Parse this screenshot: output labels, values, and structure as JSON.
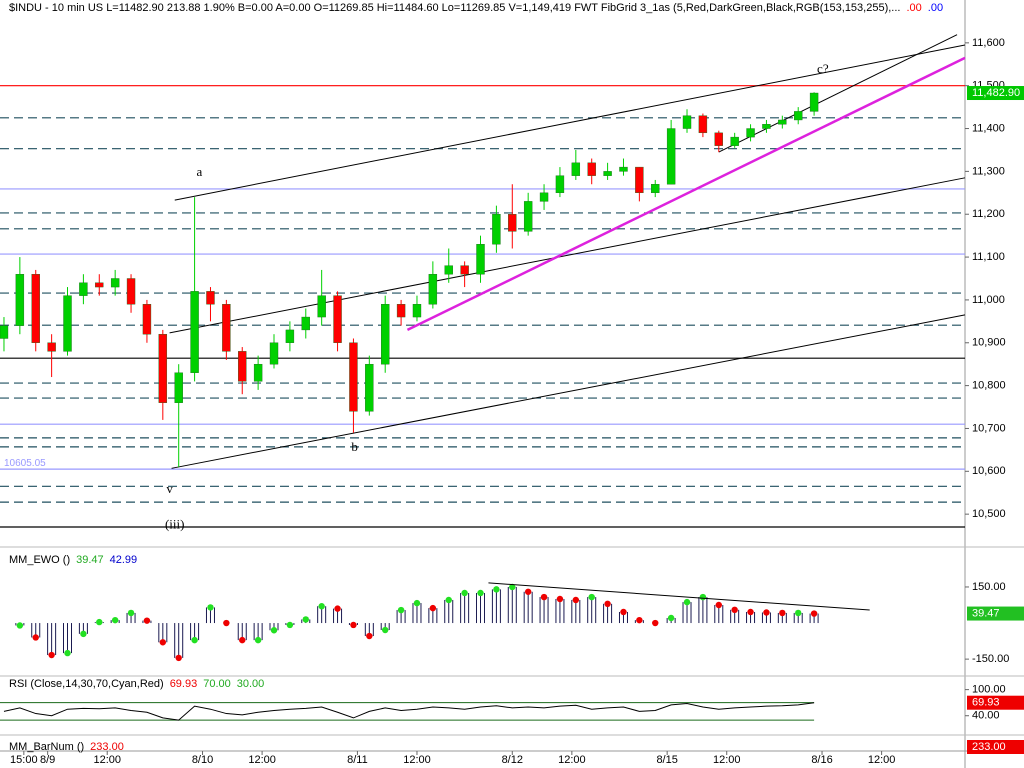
{
  "chart_data": [
    {
      "type": "candlestick",
      "header": [
        {
          "text": "$INDU - 10 min US   L=11482.90   213.88   1.90%   B=0.00   A=0.00   O=11269.85   Hi=11484.60   Lo=11269.85   V=1,149,419   FWT FibGrid 3_1as (5,Red,DarkGreen,Black,RGB(153,153,255),...",
          "color": "#000000"
        },
        {
          "text": ".00",
          "color": "#ff0000"
        },
        {
          "text": ".00",
          "color": "#0000ff"
        }
      ],
      "x": [
        -50,
        -46,
        -42,
        -38,
        -34,
        -30,
        -26,
        -22,
        -18,
        -14,
        -10,
        -6,
        -2,
        2,
        6,
        10,
        14,
        18,
        22,
        26,
        30,
        34,
        38,
        42,
        46,
        50,
        54,
        58,
        62,
        66,
        70,
        74,
        78,
        82,
        86,
        90,
        94,
        98,
        102,
        106,
        110,
        114,
        118,
        122,
        126,
        130,
        134,
        138,
        142,
        146,
        150,
        154
      ],
      "open": [
        10910,
        10940,
        11060,
        10900,
        10880,
        11010,
        11040,
        11030,
        11050,
        10990,
        10920,
        10760,
        10830,
        11020,
        10990,
        10880,
        10810,
        10850,
        10900,
        10930,
        10960,
        11010,
        10900,
        10740,
        10850,
        10990,
        10960,
        10990,
        11060,
        11080,
        11060,
        11130,
        11200,
        11160,
        11230,
        11250,
        11290,
        11320,
        11290,
        11300,
        11310,
        11250,
        11270,
        11400,
        11430,
        11390,
        11360,
        11380,
        11400,
        11410,
        11420,
        11440
      ],
      "high": [
        10960,
        11100,
        11070,
        10920,
        11030,
        11060,
        11060,
        11070,
        11060,
        11000,
        10930,
        10850,
        11240,
        11030,
        11000,
        10890,
        10870,
        10920,
        10950,
        10980,
        11070,
        11020,
        10910,
        10870,
        11010,
        11000,
        11010,
        11090,
        11120,
        11090,
        11150,
        11220,
        11270,
        11250,
        11270,
        11310,
        11350,
        11330,
        11320,
        11330,
        11310,
        11280,
        11420,
        11445,
        11435,
        11395,
        11390,
        11410,
        11420,
        11430,
        11450,
        11484.6
      ],
      "low": [
        10880,
        10920,
        10880,
        10820,
        10870,
        10990,
        11010,
        11010,
        10970,
        10900,
        10720,
        10610,
        10810,
        10950,
        10860,
        10780,
        10790,
        10840,
        10880,
        10910,
        10940,
        10880,
        10690,
        10730,
        10830,
        10940,
        10950,
        10980,
        11040,
        11030,
        11040,
        11110,
        11120,
        11150,
        11210,
        11240,
        11280,
        11270,
        11280,
        11290,
        11230,
        11240,
        11270,
        11390,
        11380,
        11345,
        11355,
        11370,
        11390,
        11400,
        11410,
        11430
      ],
      "close": [
        10940,
        11060,
        10900,
        10880,
        11010,
        11040,
        11030,
        11050,
        10990,
        10920,
        10760,
        10830,
        11020,
        10990,
        10880,
        10810,
        10850,
        10900,
        10930,
        10960,
        11010,
        10900,
        10740,
        10850,
        10990,
        10960,
        10990,
        11060,
        11080,
        11060,
        11130,
        11200,
        11160,
        11230,
        11250,
        11290,
        11320,
        11290,
        11300,
        11310,
        11250,
        11270,
        11400,
        11430,
        11390,
        11360,
        11380,
        11400,
        11410,
        11420,
        11440,
        11482.9
      ],
      "colors": {
        "up": "#00d000",
        "down": "#ff0000",
        "wick": "#1a6a1a"
      },
      "xlim": [
        -51,
        192
      ],
      "xticks": [
        {
          "value": -45,
          "label": "15:00"
        },
        {
          "value": -39,
          "label": "8/9"
        },
        {
          "value": -24,
          "label": "12:00"
        },
        {
          "value": 0,
          "label": "8/10"
        },
        {
          "value": 15,
          "label": "12:00"
        },
        {
          "value": 39,
          "label": "8/11"
        },
        {
          "value": 54,
          "label": "12:00"
        },
        {
          "value": 78,
          "label": "8/12"
        },
        {
          "value": 93,
          "label": "12:00"
        },
        {
          "value": 117,
          "label": "8/15"
        },
        {
          "value": 132,
          "label": "12:00"
        },
        {
          "value": 156,
          "label": "8/16"
        },
        {
          "value": 171,
          "label": "12:00"
        }
      ],
      "ylim": [
        10428,
        11700
      ],
      "yticks": [
        {
          "value": 11600,
          "label": "11,600"
        },
        {
          "value": 11500,
          "label": "11,500"
        },
        {
          "value": 11400,
          "label": "11,400"
        },
        {
          "value": 11300,
          "label": "11,300"
        },
        {
          "value": 11200,
          "label": "11,200"
        },
        {
          "value": 11100,
          "label": "11,100"
        },
        {
          "value": 11000,
          "label": "11,000"
        },
        {
          "value": 10900,
          "label": "10,900"
        },
        {
          "value": 10800,
          "label": "10,800"
        },
        {
          "value": 10700,
          "label": "10,700"
        },
        {
          "value": 10600,
          "label": "10,600"
        },
        {
          "value": 10500,
          "label": "10,500"
        }
      ],
      "last": {
        "value": 11482.9,
        "label": "11,482.90"
      },
      "last_color": "#00c800",
      "levels": [
        {
          "value": 11500,
          "color": "#ff0000",
          "dashed": false
        },
        {
          "value": 11425,
          "color": "#1f4f5f",
          "dashed": true
        },
        {
          "value": 11353,
          "color": "#1f4f5f",
          "dashed": true
        },
        {
          "value": 11259,
          "color": "#9999ff",
          "dashed": false
        },
        {
          "value": 11203,
          "color": "#1f4f5f",
          "dashed": true
        },
        {
          "value": 11166,
          "color": "#1f4f5f",
          "dashed": true
        },
        {
          "value": 11107,
          "color": "#9999ff",
          "dashed": false
        },
        {
          "value": 11016,
          "color": "#1f4f5f",
          "dashed": true
        },
        {
          "value": 10941,
          "color": "#1f4f5f",
          "dashed": true
        },
        {
          "value": 10864,
          "color": "#000000",
          "dashed": false
        },
        {
          "value": 10806,
          "color": "#1f4f5f",
          "dashed": true
        },
        {
          "value": 10771,
          "color": "#1f4f5f",
          "dashed": true
        },
        {
          "value": 10710,
          "color": "#9999ff",
          "dashed": false
        },
        {
          "value": 10678,
          "color": "#1f4f5f",
          "dashed": true
        },
        {
          "value": 10657,
          "color": "#1f4f5f",
          "dashed": true
        },
        {
          "value": 10605.05,
          "color": "#9999ff",
          "dashed": false
        },
        {
          "value": 10565,
          "color": "#1f4f5f",
          "dashed": true
        },
        {
          "value": 10528,
          "color": "#1f4f5f",
          "dashed": true
        },
        {
          "value": 10470,
          "color": "#000000",
          "dashed": false
        }
      ],
      "trendlines": [
        {
          "from": [
            -7,
            11233
          ],
          "to": [
            192,
            11595
          ],
          "color": "#000000"
        },
        {
          "from": [
            -8.3,
            10923
          ],
          "to": [
            192,
            11285
          ],
          "color": "#000000"
        },
        {
          "from": [
            -7.8,
            10607
          ],
          "to": [
            192,
            10965
          ],
          "color": "#000000"
        },
        {
          "from": [
            130,
            11345
          ],
          "to": [
            190,
            11619
          ],
          "color": "#000000"
        },
        {
          "from": [
            51.6,
            10930
          ],
          "to": [
            192,
            11565
          ],
          "color": "#dd22dd"
        }
      ],
      "annotations": [
        {
          "text": "a",
          "x": -0.8,
          "y": 11296
        },
        {
          "text": "b",
          "x": 38.3,
          "y": 10654
        },
        {
          "text": "v",
          "x": -8.3,
          "y": 10556
        },
        {
          "text": "(iii)",
          "x": -7,
          "y": 10474
        },
        {
          "text": "c?",
          "x": 156.2,
          "y": 11537
        }
      ]
    },
    {
      "type": "ewo",
      "title": "MM_EWO ()",
      "values": [
        null,
        -10,
        -60,
        -133,
        -125,
        -45,
        4,
        12,
        42,
        10,
        -80,
        -145,
        -71,
        65,
        0,
        -71,
        -71,
        -30,
        -8,
        15,
        70,
        60,
        -8,
        -54,
        -29,
        54,
        83,
        62,
        96,
        125,
        125,
        140,
        150,
        130,
        108,
        100,
        96,
        108,
        80,
        46,
        12,
        0,
        21,
        87,
        108,
        75,
        55,
        46,
        44,
        42,
        42,
        39.47
      ],
      "signal_value": 42.99,
      "ylim": [
        -216,
        312
      ],
      "yticks": [
        {
          "value": 150,
          "label": "150.00"
        },
        {
          "value": -150,
          "label": "-150.00"
        }
      ],
      "colors": {
        "bar": "#1a1a50",
        "rising": "#22e022",
        "falling": "#ee0000",
        "value": "#22aa22",
        "signal": "#0000cc",
        "box": "#22c022"
      },
      "trendlines": [
        {
          "from": [
            72,
            167
          ],
          "to": [
            168,
            54
          ],
          "color": "#000000"
        }
      ]
    },
    {
      "type": "line",
      "title": "RSI (Close,14,30,70,Cyan,Red)",
      "values": [
        50,
        58,
        45,
        40,
        55,
        57,
        56,
        58,
        52,
        48,
        35,
        30,
        62,
        55,
        45,
        42,
        48,
        52,
        55,
        57,
        60,
        48,
        35,
        50,
        58,
        52,
        55,
        60,
        58,
        55,
        60,
        63,
        58,
        60,
        58,
        62,
        64,
        55,
        58,
        60,
        50,
        52,
        65,
        68,
        60,
        55,
        58,
        60,
        62,
        63,
        65,
        69.93
      ],
      "ylim": [
        -2,
        129
      ],
      "yticks": [
        {
          "value": 100,
          "label": "100.00"
        },
        {
          "value": 40,
          "label": "40.00"
        }
      ],
      "overbought": {
        "value": 70,
        "label": "70.00"
      },
      "oversold": {
        "value": 30,
        "label": "30.00"
      },
      "color": "#000000",
      "band_color": "#1a6a1a",
      "value_color": "#ee0000",
      "level_color": "#22aa22"
    },
    {
      "type": "indicator",
      "title": "MM_BarNum ()",
      "value": {
        "value": 233,
        "label": "233.00"
      },
      "color": "#ee0000"
    }
  ]
}
